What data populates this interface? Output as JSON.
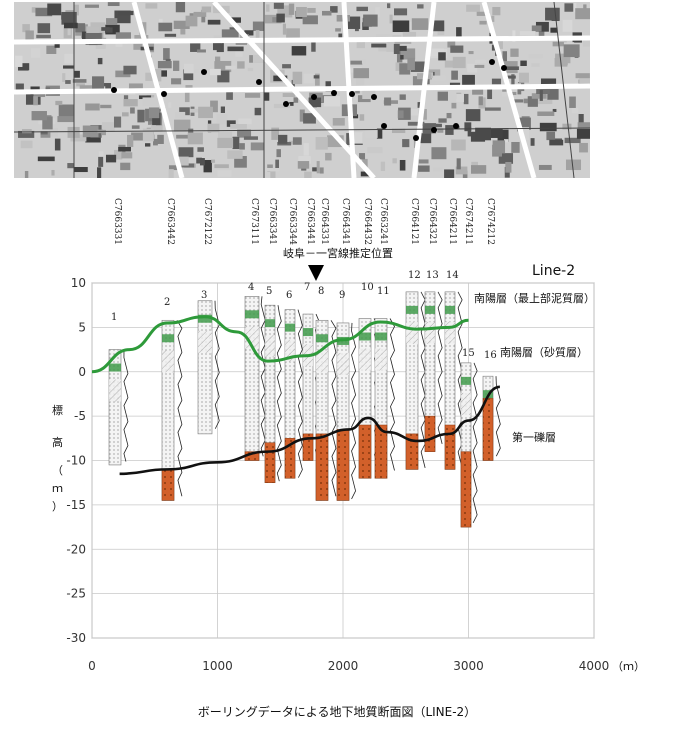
{
  "title": "ボーリングデータによる地下地質断面図（LINE-2）",
  "line_label": "Line-2",
  "location_label": "岐阜－一宮線推定位置",
  "axes": {
    "y_label_chars": [
      "標",
      "高",
      "（",
      "ｍ",
      "）"
    ],
    "x_unit": "（ｍ）",
    "y_ticks": [
      "10",
      "5",
      "0",
      "-5",
      "-10",
      "-15",
      "-20",
      "-25",
      "-30"
    ],
    "x_ticks": [
      "0",
      "1000",
      "2000",
      "3000",
      "4000"
    ]
  },
  "layers": {
    "upper_mud": "南陽層（最上部泥質層）",
    "sand": "南陽層（砂質層）",
    "gravel": "第一礫層"
  },
  "boreholes": [
    {
      "no": "1",
      "code": "C7663331"
    },
    {
      "no": "2",
      "code": "C7663442"
    },
    {
      "no": "3",
      "code": "C7672122"
    },
    {
      "no": "4",
      "code": "C7673111"
    },
    {
      "no": "5",
      "code": "C7663341"
    },
    {
      "no": "6",
      "code": "C7663344"
    },
    {
      "no": "7",
      "code": "C7663441"
    },
    {
      "no": "8",
      "code": "C7664331"
    },
    {
      "no": "9",
      "code": "C7664341"
    },
    {
      "no": "10",
      "code": "C7664432"
    },
    {
      "no": "11",
      "code": "C7663241"
    },
    {
      "no": "12",
      "code": "C7664121"
    },
    {
      "no": "13",
      "code": "C7664321"
    },
    {
      "no": "14",
      "code": "C7664211"
    },
    {
      "no": "15",
      "code": "C7674211"
    },
    {
      "no": "16",
      "code": "C7674212"
    }
  ],
  "colors": {
    "sand_line": "#2e9a3a",
    "gravel_line": "#111111",
    "gravel_fill": "#d2602a",
    "mud_fill": "#3f9a4a",
    "grid": "#c8c8c8"
  },
  "icons": [
    "map-image",
    "position-marker-icon"
  ]
}
